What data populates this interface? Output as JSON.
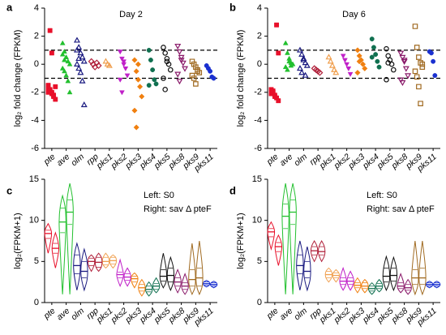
{
  "chart_data": [
    {
      "type": "strip",
      "panel": "a",
      "title": "Day 2",
      "ylabel": "log₂ fold change (FPKM)",
      "categories": [
        "pte",
        "ave",
        "olm",
        "rpp",
        "pks1",
        "pks2",
        "pks3",
        "pks4",
        "pks5",
        "pks8",
        "pks9",
        "pks11"
      ],
      "colors": [
        "#e8102a",
        "#22c02e",
        "#1a1a80",
        "#b0203a",
        "#f0a050",
        "#c020c8",
        "#f08010",
        "#107050",
        "#111111",
        "#8a1a6a",
        "#a06a20",
        "#1a30d0"
      ],
      "markers": [
        "square",
        "triangle",
        "triangle-open",
        "diamond-open",
        "triangle-open",
        "triangle-down",
        "diamond",
        "circle",
        "circle-open",
        "triangle-down-open",
        "square-open",
        "circle"
      ],
      "values": [
        [
          -1.5,
          -1.8,
          -2,
          -2.2,
          -2.5,
          -1.7,
          -1.9,
          -2.1,
          -2.3,
          -1.6,
          -2.0,
          2.4,
          0.8
        ],
        [
          1.5,
          0.9,
          0.5,
          0.2,
          0,
          -0.3,
          -0.5,
          -0.8,
          -1.2,
          -2,
          0.7,
          0.3
        ],
        [
          1.7,
          1.2,
          0.8,
          0.5,
          0.2,
          0,
          -0.3,
          -0.6,
          -1.2,
          -2.9,
          1.0,
          0.4
        ],
        [
          0.2,
          0,
          -0.2,
          0.1,
          -0.1
        ],
        [
          0.2,
          0,
          -0.1
        ],
        [
          0.9,
          0.4,
          0,
          -0.3,
          -0.8,
          -1.1,
          -2.0,
          0.2
        ],
        [
          0.3,
          -0.5,
          -1.1,
          -1.6,
          -2.3,
          -3.3,
          -4.5,
          0
        ],
        [
          1.0,
          0.3,
          -0.4,
          -1.1,
          -1.4,
          -1.5
        ],
        [
          1.2,
          0.8,
          0.4,
          0,
          -0.4,
          -1.0,
          -1.8,
          0.2
        ],
        [
          1.3,
          0.9,
          0.5,
          0.1,
          -0.3,
          -0.7,
          -1.2,
          0.3
        ],
        [
          0.2,
          0,
          -0.2,
          -0.4,
          -0.6,
          -0.8,
          -1.0,
          -1.4,
          -0.5
        ],
        [
          -0.1,
          -0.3,
          -0.5,
          -0.9,
          -1.0
        ]
      ],
      "reference_lines": [
        1,
        -1
      ],
      "ylim": [
        -6,
        4
      ],
      "yticks": [
        -6,
        -4,
        -2,
        0,
        2,
        4
      ]
    },
    {
      "type": "strip",
      "panel": "b",
      "title": "Day 6",
      "ylabel": "log₂ fold change (FPKM)",
      "categories": [
        "pte",
        "ave",
        "olm",
        "rpp",
        "pks1",
        "pks2",
        "pks3",
        "pks4",
        "pks5",
        "pks8",
        "pks9",
        "pks11"
      ],
      "colors": [
        "#e8102a",
        "#22c02e",
        "#1a1a80",
        "#b0203a",
        "#f0a050",
        "#c020c8",
        "#f08010",
        "#107050",
        "#111111",
        "#8a1a6a",
        "#a06a20",
        "#1a30d0"
      ],
      "markers": [
        "square",
        "triangle",
        "triangle-open",
        "diamond-open",
        "triangle-open",
        "triangle-down",
        "diamond",
        "circle",
        "circle-open",
        "triangle-down-open",
        "square-open",
        "circle"
      ],
      "values": [
        [
          -1.8,
          -2,
          -2.2,
          -2.4,
          -2.6,
          -2.1,
          -1.9,
          -2.3,
          2.8,
          0.8
        ],
        [
          1.5,
          0.8,
          0.4,
          0.1,
          0,
          -0.2,
          -0.4,
          0.2,
          -0.1
        ],
        [
          1.0,
          0.7,
          0.3,
          0.1,
          -0.1,
          -0.3,
          -0.6,
          0.4,
          -0.8
        ],
        [
          -0.3,
          -0.4,
          -0.5,
          -0.6
        ],
        [
          0.5,
          0.2,
          -0.1,
          -0.4,
          -0.6
        ],
        [
          0.6,
          0.3,
          0,
          -0.3,
          -0.7
        ],
        [
          1.0,
          0.6,
          0.3,
          0,
          -0.3,
          -0.6,
          0.2
        ],
        [
          1.8,
          1.2,
          0.7,
          0.2,
          -0.2,
          0.5
        ],
        [
          1.1,
          0.6,
          0.3,
          0,
          -0.4,
          -1.1,
          0.1
        ],
        [
          0.8,
          0.5,
          0.2,
          -0.3,
          -0.8,
          -1.1,
          -1.3,
          0.3
        ],
        [
          2.7,
          1.2,
          0.5,
          0.1,
          -0.2,
          -0.5,
          -0.9,
          -1.6,
          -2.8,
          0
        ],
        [
          0.9,
          0.8,
          0.2,
          -0.8
        ]
      ],
      "reference_lines": [
        1,
        -1
      ],
      "ylim": [
        -6,
        4
      ],
      "yticks": [
        -6,
        -4,
        -2,
        0,
        2,
        4
      ]
    },
    {
      "type": "violin",
      "panel": "c",
      "ylabel": "log₂(FPKM+1)",
      "legend": [
        "Left: S0",
        "Right: sav Δ pteF"
      ],
      "categories": [
        "pte",
        "ave",
        "olm",
        "rpp",
        "pks1",
        "pks2",
        "pks3",
        "pks4",
        "pks5",
        "pks8",
        "pks9",
        "pks11"
      ],
      "colors": [
        "#e8102a",
        "#22c02e",
        "#1a1a80",
        "#b0203a",
        "#f0a050",
        "#c020c8",
        "#f08010",
        "#107050",
        "#111111",
        "#8a1a6a",
        "#a06a20",
        "#1a30d0"
      ],
      "left": [
        [
          6,
          7.8,
          8.4,
          8.8,
          9.6
        ],
        [
          1,
          8.5,
          9.8,
          11.5,
          13
        ],
        [
          1.5,
          3.5,
          4.5,
          5.8,
          7.2
        ],
        [
          3.8,
          4.5,
          5,
          5.4,
          5.8
        ],
        [
          4.2,
          4.6,
          5,
          5.5,
          6
        ],
        [
          2,
          3,
          3.4,
          3.7,
          5.2
        ],
        [
          1.8,
          2.5,
          2.9,
          3.2,
          3.6
        ],
        [
          0.8,
          1.3,
          1.6,
          2,
          2.5
        ],
        [
          1.8,
          2.6,
          3.2,
          4,
          6
        ],
        [
          1.2,
          2,
          2.5,
          3,
          4
        ],
        [
          1,
          2,
          2.8,
          4,
          7.2
        ],
        [
          1.9,
          2.1,
          2.3,
          2.5,
          2.7
        ]
      ],
      "right": [
        [
          4.2,
          6,
          6.6,
          7.2,
          8.5
        ],
        [
          1,
          9.5,
          11,
          12.5,
          14.5
        ],
        [
          1.5,
          3,
          3.8,
          5,
          6.5
        ],
        [
          3.8,
          4.3,
          4.9,
          5.5,
          6
        ],
        [
          4.2,
          4.7,
          5.1,
          5.5,
          5.8
        ],
        [
          2,
          2.7,
          3.1,
          3.5,
          4.2
        ],
        [
          0.8,
          1.4,
          1.8,
          2.2,
          2.8
        ],
        [
          1.2,
          1.6,
          2,
          2.3,
          3
        ],
        [
          1.5,
          2.5,
          3.3,
          4.2,
          5.5
        ],
        [
          1,
          1.6,
          2,
          2.4,
          3.5
        ],
        [
          1,
          2,
          3,
          4.2,
          7.5
        ],
        [
          1.8,
          2,
          2.2,
          2.4,
          2.6
        ]
      ],
      "ylim": [
        0,
        15
      ],
      "yticks": [
        0,
        5,
        10,
        15
      ]
    },
    {
      "type": "violin",
      "panel": "d",
      "ylabel": "log₂(FPKM+1)",
      "legend": [
        "Left: S0",
        "Right: sav Δ pteF"
      ],
      "categories": [
        "pte",
        "ave",
        "olm",
        "rpp",
        "pks1",
        "pks2",
        "pks3",
        "pks4",
        "pks5",
        "pks8",
        "pks9",
        "pks11"
      ],
      "colors": [
        "#e8102a",
        "#22c02e",
        "#1a1a80",
        "#b0203a",
        "#f0a050",
        "#c020c8",
        "#f08010",
        "#107050",
        "#111111",
        "#8a1a6a",
        "#a06a20",
        "#1a30d0"
      ],
      "left": [
        [
          6.5,
          8,
          8.6,
          9,
          9.8
        ],
        [
          1,
          9,
          10.5,
          12,
          14.5
        ],
        [
          1.5,
          3.5,
          4.5,
          5.8,
          7.5
        ],
        [
          5,
          5.8,
          6.3,
          6.8,
          7.5
        ],
        [
          2.5,
          3,
          3.4,
          3.8,
          4.2
        ],
        [
          1.5,
          2.2,
          2.6,
          3,
          4.2
        ],
        [
          1.2,
          1.8,
          2.1,
          2.4,
          3
        ],
        [
          1,
          1.4,
          1.7,
          2,
          2.4
        ],
        [
          1.5,
          2.5,
          3.2,
          4.2,
          5.6
        ],
        [
          1.2,
          1.7,
          2,
          2.4,
          3.5
        ],
        [
          1,
          2.2,
          3,
          4,
          7.5
        ],
        [
          1.8,
          2,
          2.2,
          2.4,
          2.6
        ]
      ],
      "right": [
        [
          4.5,
          6.2,
          6.8,
          7.3,
          8.2
        ],
        [
          1,
          9.5,
          11,
          12.5,
          14.5
        ],
        [
          1.5,
          3,
          3.8,
          5,
          6.8
        ],
        [
          5,
          5.8,
          6.2,
          6.8,
          7.5
        ],
        [
          2.5,
          3,
          3.3,
          3.6,
          4
        ],
        [
          1.5,
          2.2,
          2.6,
          3,
          3.8
        ],
        [
          1.2,
          1.7,
          2,
          2.4,
          2.8
        ],
        [
          1.3,
          1.7,
          2,
          2.3,
          2.8
        ],
        [
          1.5,
          2.6,
          3.3,
          4.2,
          5.5
        ],
        [
          1,
          1.5,
          1.8,
          2.2,
          2.8
        ],
        [
          1,
          2.2,
          3,
          4.2,
          7.5
        ],
        [
          1.8,
          2,
          2.2,
          2.4,
          2.6
        ]
      ],
      "ylim": [
        0,
        15
      ],
      "yticks": [
        0,
        5,
        10,
        15
      ]
    }
  ]
}
